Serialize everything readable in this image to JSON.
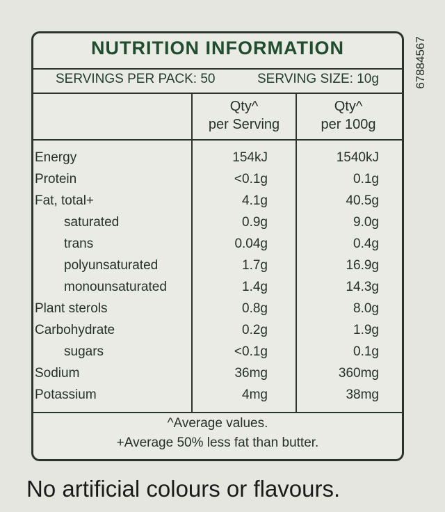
{
  "header": {
    "title": "NUTRITION INFORMATION",
    "servings_per_pack": "SERVINGS PER PACK: 50",
    "serving_size": "SERVING SIZE: 10g"
  },
  "table": {
    "columns": [
      "Qty^\nper Serving",
      "Qty^\nper 100g"
    ],
    "rows": [
      [
        "Energy",
        "154kJ",
        "1540kJ"
      ],
      [
        "Protein",
        "<0.1g",
        "0.1g"
      ],
      [
        "Fat, total+",
        "4.1g",
        "40.5g"
      ],
      [
        "saturated",
        "0.9g",
        "9.0g"
      ],
      [
        "trans",
        "0.04g",
        "0.4g"
      ],
      [
        "polyunsaturated",
        "1.7g",
        "16.9g"
      ],
      [
        "monounsaturated",
        "1.4g",
        "14.3g"
      ],
      [
        "Plant sterols",
        "0.8g",
        "8.0g"
      ],
      [
        "Carbohydrate",
        "0.2g",
        "1.9g"
      ],
      [
        "sugars",
        "<0.1g",
        "0.1g"
      ],
      [
        "Sodium",
        "36mg",
        "360mg"
      ],
      [
        "Potassium",
        "4mg",
        "38mg"
      ]
    ]
  },
  "footnotes": [
    "^Average values.",
    "+Average 50% less fat than butter."
  ],
  "side_code": "67884567",
  "claim": "No artificial colours or flavours."
}
